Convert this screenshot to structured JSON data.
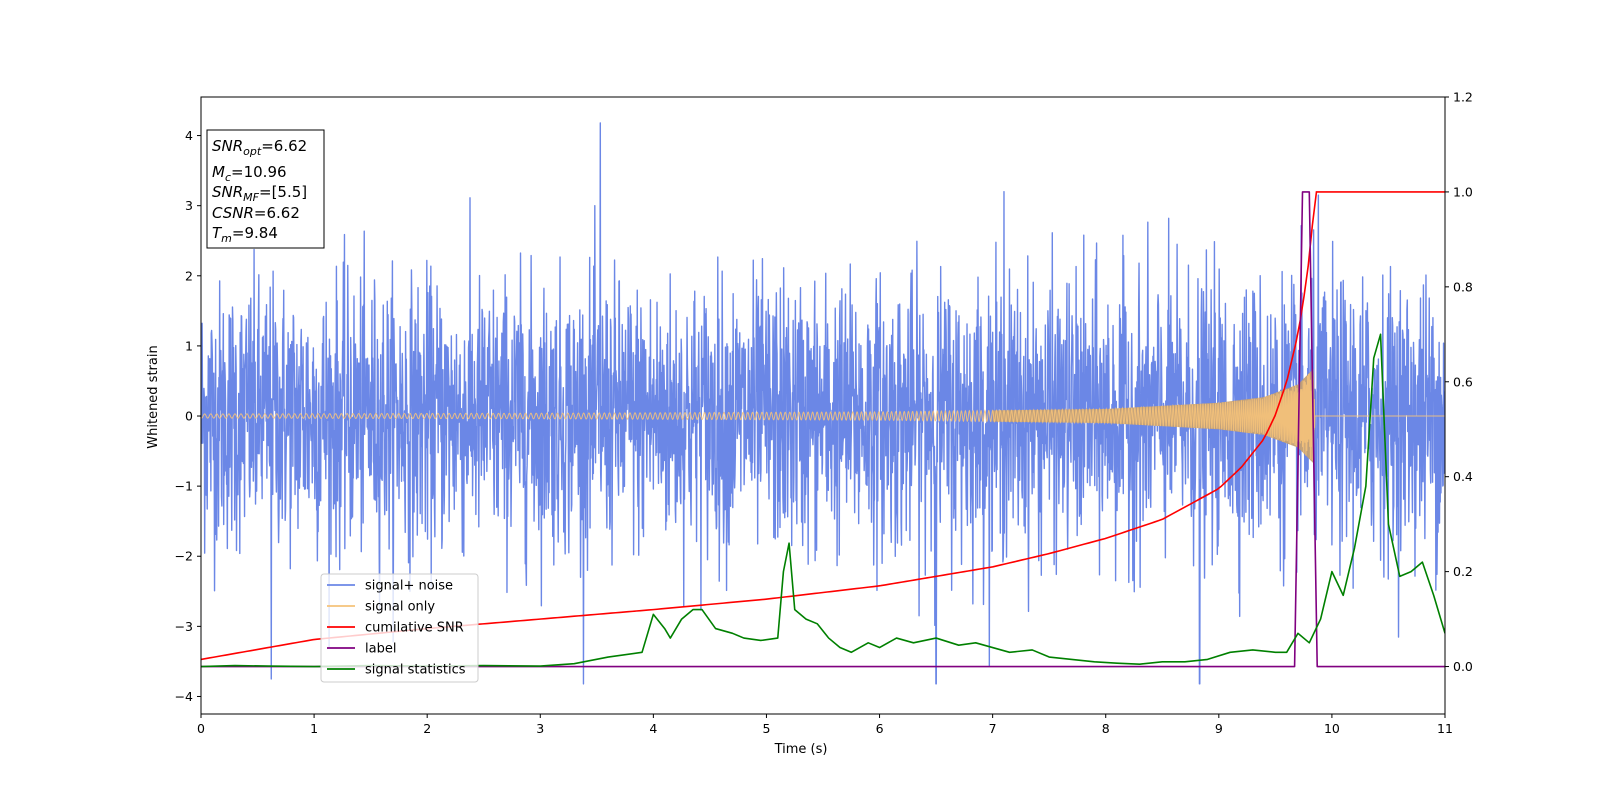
{
  "chart_data": {
    "type": "line",
    "title": "",
    "xlabel": "Time (s)",
    "ylabel": "Whitened strain",
    "xlim": [
      0,
      11
    ],
    "ylim": [
      -4.25,
      4.55
    ],
    "y2lim": [
      -0.1,
      1.2
    ],
    "xticks": [
      0,
      1,
      2,
      3,
      4,
      5,
      6,
      7,
      8,
      9,
      10,
      11
    ],
    "yticks": [
      -4,
      -3,
      -2,
      -1,
      0,
      1,
      2,
      3,
      4
    ],
    "y2ticks": [
      "0.0",
      "0.2",
      "0.4",
      "0.6",
      "0.8",
      "1.0",
      "1.2"
    ],
    "grid": false,
    "legend_position": "lower-left",
    "legend": [
      "signal+ noise",
      "signal only",
      "cumilative SNR",
      "label",
      "signal statistics"
    ],
    "annotation": {
      "lines": [
        {
          "sym": "SNR",
          "sub": "opt",
          "value": "=6.62"
        },
        {
          "sym": "M",
          "sub": "c",
          "value": "=10.96"
        },
        {
          "sym": "SNR",
          "sub": "MF",
          "value": "=[5.5]"
        },
        {
          "sym": "CSNR",
          "sub": "",
          "value": "=6.62"
        },
        {
          "sym": "T",
          "sub": "m",
          "value": "=9.84"
        }
      ]
    },
    "series": [
      {
        "name": "signal+ noise",
        "axis": "left",
        "color": "#6b87e6",
        "description_noise_std": 1.0,
        "peaks": [
          [
            0.62,
            -3.75
          ],
          [
            3.53,
            4.18
          ],
          [
            6.5,
            -3.82
          ],
          [
            8.83,
            -3.82
          ],
          [
            9.88,
            3.15
          ],
          [
            7.1,
            3.2
          ]
        ]
      },
      {
        "name": "signal only",
        "axis": "left",
        "color": "#f5c27a",
        "envelope": {
          "x": [
            0,
            3,
            6,
            8,
            9,
            9.4,
            9.7,
            9.84,
            9.85,
            11
          ],
          "amp": [
            0.03,
            0.04,
            0.06,
            0.1,
            0.19,
            0.27,
            0.45,
            0.68,
            0.0,
            0.0
          ]
        }
      },
      {
        "name": "cumilative SNR",
        "axis": "right",
        "color": "#ff0000",
        "x": [
          0,
          1,
          2,
          3,
          4,
          5,
          6,
          7,
          7.5,
          8,
          8.5,
          9,
          9.2,
          9.4,
          9.5,
          9.6,
          9.7,
          9.78,
          9.84,
          9.86,
          11
        ],
        "values": [
          0.015,
          0.057,
          0.08,
          0.1,
          0.12,
          0.142,
          0.17,
          0.21,
          0.238,
          0.27,
          0.31,
          0.375,
          0.42,
          0.48,
          0.53,
          0.6,
          0.7,
          0.82,
          0.96,
          1.0,
          1.0
        ]
      },
      {
        "name": "label",
        "axis": "right",
        "color": "#800080",
        "x": [
          0,
          9.67,
          9.74,
          9.8,
          9.87,
          11
        ],
        "values": [
          0,
          0,
          1,
          1,
          0,
          0
        ]
      },
      {
        "name": "signal statistics",
        "axis": "right",
        "color": "#008000",
        "x": [
          0,
          0.3,
          0.6,
          1,
          1.5,
          2,
          2.5,
          3,
          3.3,
          3.6,
          3.9,
          4.0,
          4.1,
          4.15,
          4.25,
          4.35,
          4.43,
          4.55,
          4.7,
          4.8,
          4.95,
          5.1,
          5.15,
          5.2,
          5.25,
          5.35,
          5.45,
          5.55,
          5.65,
          5.75,
          5.9,
          6.0,
          6.15,
          6.3,
          6.5,
          6.7,
          6.85,
          7.0,
          7.15,
          7.35,
          7.5,
          7.7,
          7.9,
          8.1,
          8.3,
          8.5,
          8.7,
          8.9,
          9.1,
          9.3,
          9.5,
          9.6,
          9.7,
          9.8,
          9.9,
          10.0,
          10.1,
          10.2,
          10.3,
          10.37,
          10.43,
          10.5,
          10.6,
          10.7,
          10.8,
          10.9,
          11.0
        ],
        "values": [
          0.0,
          0.002,
          0.001,
          0.0,
          0.002,
          0.001,
          0.002,
          0.001,
          0.006,
          0.02,
          0.03,
          0.11,
          0.08,
          0.06,
          0.1,
          0.12,
          0.12,
          0.08,
          0.07,
          0.06,
          0.055,
          0.06,
          0.2,
          0.26,
          0.12,
          0.1,
          0.09,
          0.06,
          0.04,
          0.03,
          0.05,
          0.04,
          0.06,
          0.05,
          0.06,
          0.045,
          0.05,
          0.04,
          0.03,
          0.035,
          0.02,
          0.015,
          0.01,
          0.007,
          0.005,
          0.01,
          0.01,
          0.015,
          0.03,
          0.035,
          0.03,
          0.03,
          0.07,
          0.05,
          0.1,
          0.2,
          0.15,
          0.25,
          0.38,
          0.65,
          0.7,
          0.3,
          0.19,
          0.2,
          0.22,
          0.15,
          0.07
        ]
      }
    ]
  }
}
